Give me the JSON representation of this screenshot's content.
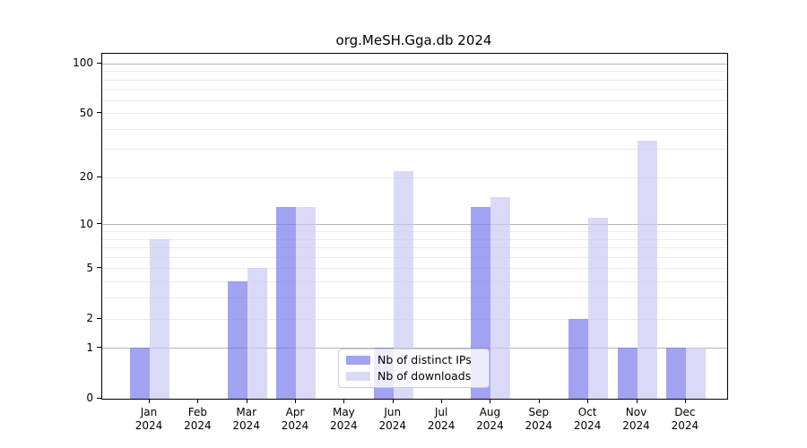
{
  "title": "org.MeSH.Gga.db 2024",
  "chart_data": {
    "type": "bar",
    "title": "org.MeSH.Gga.db 2024",
    "year": "2024",
    "months": [
      "Jan",
      "Feb",
      "Mar",
      "Apr",
      "May",
      "Jun",
      "Jul",
      "Aug",
      "Sep",
      "Oct",
      "Nov",
      "Dec"
    ],
    "categories": [
      "Jan 2024",
      "Feb 2024",
      "Mar 2024",
      "Apr 2024",
      "May 2024",
      "Jun 2024",
      "Jul 2024",
      "Aug 2024",
      "Sep 2024",
      "Oct 2024",
      "Nov 2024",
      "Dec 2024"
    ],
    "series": [
      {
        "name": "Nb of distinct IPs",
        "values": [
          1,
          0,
          4,
          13,
          0,
          1,
          0,
          13,
          0,
          2,
          1,
          1
        ],
        "color": "#a2a2f2",
        "fill": "rgba(122,122,236,0.7)"
      },
      {
        "name": "Nb of downloads",
        "values": [
          8,
          0,
          5,
          13,
          0,
          22,
          0,
          15,
          0,
          11,
          34,
          1
        ],
        "color": "#dadaf8",
        "fill": "rgba(202,202,245,0.7)"
      }
    ],
    "y_axis": {
      "scale": "log10(value+1)",
      "tick_values": [
        0,
        1,
        2,
        5,
        10,
        20,
        50,
        100
      ],
      "tick_labels": [
        "0",
        "1",
        "2",
        "5",
        "10",
        "20",
        "50",
        "100"
      ],
      "major_gridline_values": [
        1,
        10,
        100
      ],
      "minor_gridline_values": [
        2,
        3,
        4,
        5,
        6,
        7,
        8,
        9,
        20,
        30,
        40,
        50,
        60,
        70,
        80,
        90
      ]
    },
    "ylim": [
      0,
      100
    ],
    "grid": true,
    "legend_position": "bottom-center-inside"
  },
  "colors": {
    "distinct_ips_bar": "#a2a2f2",
    "downloads_bar": "#dadaf8",
    "major_gridline": "#b5b5b5",
    "minor_gridline": "#ebebeb",
    "axis": "#000000",
    "background": "#ffffff"
  }
}
